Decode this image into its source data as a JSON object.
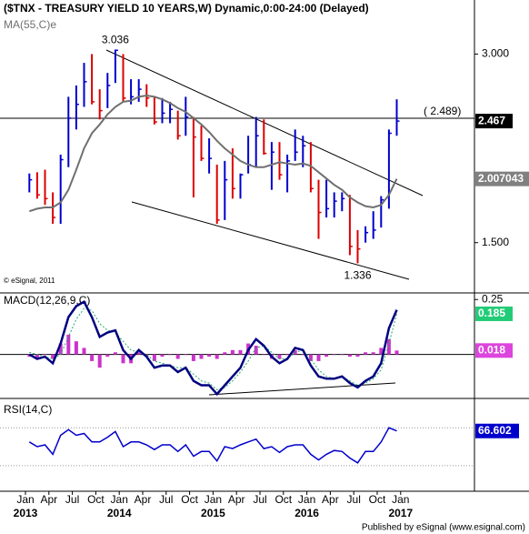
{
  "chart_data": [
    {
      "type": "ohlc",
      "title": "($TNX - TREASURY YIELD 10 YEARS,W) Dynamic,0:00-24:00 (Delayed)",
      "categories": [
        "2013-01",
        "2013-02",
        "2013-03",
        "2013-04",
        "2013-05",
        "2013-06",
        "2013-07",
        "2013-08",
        "2013-09",
        "2013-10",
        "2013-11",
        "2013-12",
        "2014-01",
        "2014-02",
        "2014-03",
        "2014-04",
        "2014-05",
        "2014-06",
        "2014-07",
        "2014-08",
        "2014-09",
        "2014-10",
        "2014-11",
        "2014-12",
        "2015-01",
        "2015-02",
        "2015-03",
        "2015-04",
        "2015-05",
        "2015-06",
        "2015-07",
        "2015-08",
        "2015-09",
        "2015-10",
        "2015-11",
        "2015-12",
        "2016-01",
        "2016-02",
        "2016-03",
        "2016-04",
        "2016-05",
        "2016-06",
        "2016-07",
        "2016-08",
        "2016-09",
        "2016-10",
        "2016-11",
        "2016-12"
      ],
      "high": [
        2.05,
        2.06,
        2.08,
        1.9,
        2.2,
        2.66,
        2.75,
        2.93,
        3.0,
        2.72,
        2.85,
        3.036,
        3.0,
        2.8,
        2.8,
        2.76,
        2.66,
        2.65,
        2.62,
        2.55,
        2.66,
        2.5,
        2.43,
        2.33,
        2.12,
        2.15,
        2.25,
        2.05,
        2.35,
        2.5,
        2.48,
        2.3,
        2.3,
        2.2,
        2.4,
        2.35,
        2.3,
        2.0,
        2.0,
        1.9,
        1.9,
        1.88,
        1.6,
        1.63,
        1.75,
        1.87,
        2.4,
        2.64
      ],
      "low": [
        1.9,
        1.85,
        1.8,
        1.65,
        1.65,
        2.1,
        2.4,
        2.58,
        2.6,
        2.48,
        2.57,
        2.77,
        2.62,
        2.6,
        2.62,
        2.58,
        2.44,
        2.45,
        2.45,
        2.32,
        2.35,
        1.86,
        2.15,
        2.05,
        1.65,
        1.68,
        1.85,
        1.85,
        2.05,
        2.1,
        2.2,
        1.92,
        2.0,
        1.9,
        2.15,
        2.1,
        1.9,
        1.53,
        1.7,
        1.7,
        1.75,
        1.4,
        1.336,
        1.5,
        1.53,
        1.62,
        1.77,
        2.35
      ],
      "close": [
        2.0,
        1.88,
        1.85,
        1.7,
        2.16,
        2.49,
        2.6,
        2.78,
        2.62,
        2.55,
        2.75,
        3.03,
        2.65,
        2.66,
        2.72,
        2.65,
        2.46,
        2.53,
        2.56,
        2.35,
        2.5,
        2.34,
        2.17,
        2.17,
        1.68,
        2.0,
        1.93,
        2.04,
        2.12,
        2.35,
        2.21,
        2.22,
        2.04,
        2.15,
        2.22,
        2.27,
        1.93,
        1.74,
        1.77,
        1.83,
        1.85,
        1.47,
        1.45,
        1.58,
        1.6,
        1.84,
        2.37,
        2.467
      ],
      "up_color": "#0000cc",
      "down_color": "#dd0000",
      "series": [
        {
          "name": "MA(55,C)e",
          "color": "#707070",
          "values": [
            1.75,
            1.77,
            1.78,
            1.78,
            1.82,
            1.92,
            2.08,
            2.25,
            2.37,
            2.44,
            2.52,
            2.58,
            2.62,
            2.63,
            2.66,
            2.67,
            2.66,
            2.64,
            2.61,
            2.57,
            2.54,
            2.49,
            2.44,
            2.38,
            2.31,
            2.25,
            2.2,
            2.15,
            2.12,
            2.1,
            2.1,
            2.12,
            2.14,
            2.13,
            2.12,
            2.13,
            2.11,
            2.06,
            2.01,
            1.96,
            1.92,
            1.86,
            1.82,
            1.79,
            1.78,
            1.8,
            1.88,
            2.007043
          ]
        }
      ],
      "ylim": [
        1.1,
        3.43
      ],
      "yticks": [
        {
          "value": 1.5,
          "label": "1.500"
        },
        {
          "value": 3.0,
          "label": "3.000"
        }
      ],
      "hline": {
        "value": 2.489,
        "label": "( 2.489)"
      },
      "annotations": [
        {
          "value": 3.036,
          "label": "3.036"
        },
        {
          "value": 1.336,
          "label": "1.336"
        }
      ],
      "credit": "© eSignal, 2011"
    },
    {
      "type": "macd",
      "title": "MACD(12,26,9,C)",
      "series": [
        {
          "color": "#000080",
          "values": [
            0.0,
            -0.02,
            -0.01,
            -0.04,
            0.05,
            0.17,
            0.22,
            0.24,
            0.17,
            0.08,
            0.1,
            0.11,
            0.02,
            -0.02,
            0.02,
            -0.01,
            -0.06,
            -0.05,
            -0.05,
            -0.08,
            -0.06,
            -0.12,
            -0.14,
            -0.14,
            -0.18,
            -0.14,
            -0.1,
            -0.06,
            0.02,
            0.07,
            0.04,
            -0.01,
            -0.04,
            -0.02,
            0.03,
            0.02,
            -0.05,
            -0.1,
            -0.11,
            -0.11,
            -0.1,
            -0.13,
            -0.15,
            -0.12,
            -0.1,
            -0.04,
            0.12,
            0.203
          ]
        },
        {
          "color": "#22aa66",
          "values": [
            0.01,
            0.0,
            -0.01,
            -0.02,
            0.0,
            0.08,
            0.16,
            0.21,
            0.2,
            0.14,
            0.11,
            0.1,
            0.06,
            0.02,
            0.01,
            0.0,
            -0.03,
            -0.04,
            -0.05,
            -0.06,
            -0.06,
            -0.09,
            -0.12,
            -0.13,
            -0.16,
            -0.15,
            -0.12,
            -0.08,
            -0.03,
            0.03,
            0.04,
            0.01,
            -0.02,
            -0.02,
            0.01,
            0.02,
            -0.02,
            -0.07,
            -0.1,
            -0.11,
            -0.1,
            -0.12,
            -0.14,
            -0.13,
            -0.11,
            -0.07,
            0.05,
            0.185
          ]
        },
        {
          "color": "#cc33cc",
          "values": [
            -0.01,
            -0.02,
            0.0,
            -0.02,
            0.05,
            0.09,
            0.06,
            0.03,
            -0.03,
            -0.06,
            -0.01,
            0.01,
            -0.04,
            -0.04,
            0.01,
            -0.01,
            -0.03,
            -0.01,
            0.0,
            -0.02,
            0.0,
            -0.03,
            -0.02,
            -0.01,
            -0.02,
            0.01,
            0.02,
            0.02,
            0.05,
            0.04,
            0.0,
            -0.02,
            -0.02,
            0.0,
            0.02,
            0.0,
            -0.03,
            -0.03,
            -0.01,
            0.0,
            0.0,
            -0.01,
            -0.01,
            0.01,
            0.01,
            0.03,
            0.07,
            0.018
          ]
        }
      ],
      "ylim": [
        -0.2,
        0.28
      ],
      "yticks": [
        0.25
      ]
    },
    {
      "type": "line",
      "title": "RSI(14,C)",
      "series": [
        {
          "color": "#0000cc",
          "values": [
            55,
            50,
            52,
            42,
            62,
            68,
            62,
            64,
            55,
            55,
            60,
            66,
            50,
            55,
            55,
            52,
            47,
            52,
            52,
            45,
            52,
            40,
            45,
            45,
            35,
            50,
            48,
            52,
            55,
            58,
            48,
            50,
            44,
            50,
            52,
            52,
            42,
            36,
            42,
            46,
            45,
            38,
            33,
            45,
            45,
            55,
            70,
            66.602
          ]
        }
      ],
      "ylim": [
        3,
        99
      ],
      "levels": [
        30,
        70
      ]
    }
  ],
  "xaxis": {
    "months": [
      {
        "value": 0,
        "label": "Jan"
      },
      {
        "value": 3,
        "label": "Apr"
      },
      {
        "value": 6,
        "label": "Jul"
      },
      {
        "value": 9,
        "label": "Oct"
      },
      {
        "value": 12,
        "label": "Jan"
      },
      {
        "value": 15,
        "label": "Apr"
      },
      {
        "value": 18,
        "label": "Jul"
      },
      {
        "value": 21,
        "label": "Oct"
      },
      {
        "value": 24,
        "label": "Jan"
      },
      {
        "value": 27,
        "label": "Apr"
      },
      {
        "value": 30,
        "label": "Jul"
      },
      {
        "value": 33,
        "label": "Oct"
      },
      {
        "value": 36,
        "label": "Jan"
      },
      {
        "value": 39,
        "label": "Apr"
      },
      {
        "value": 42,
        "label": "Jul"
      },
      {
        "value": 45,
        "label": "Oct"
      },
      {
        "value": 48,
        "label": "Jan"
      }
    ],
    "years": [
      {
        "value": 0,
        "label": "2013"
      },
      {
        "value": 12,
        "label": "2014"
      },
      {
        "value": 24,
        "label": "2015"
      },
      {
        "value": 36,
        "label": "2016"
      },
      {
        "value": 48,
        "label": "2017"
      }
    ]
  },
  "footer": "Published by eSignal (www.esignal.com)"
}
